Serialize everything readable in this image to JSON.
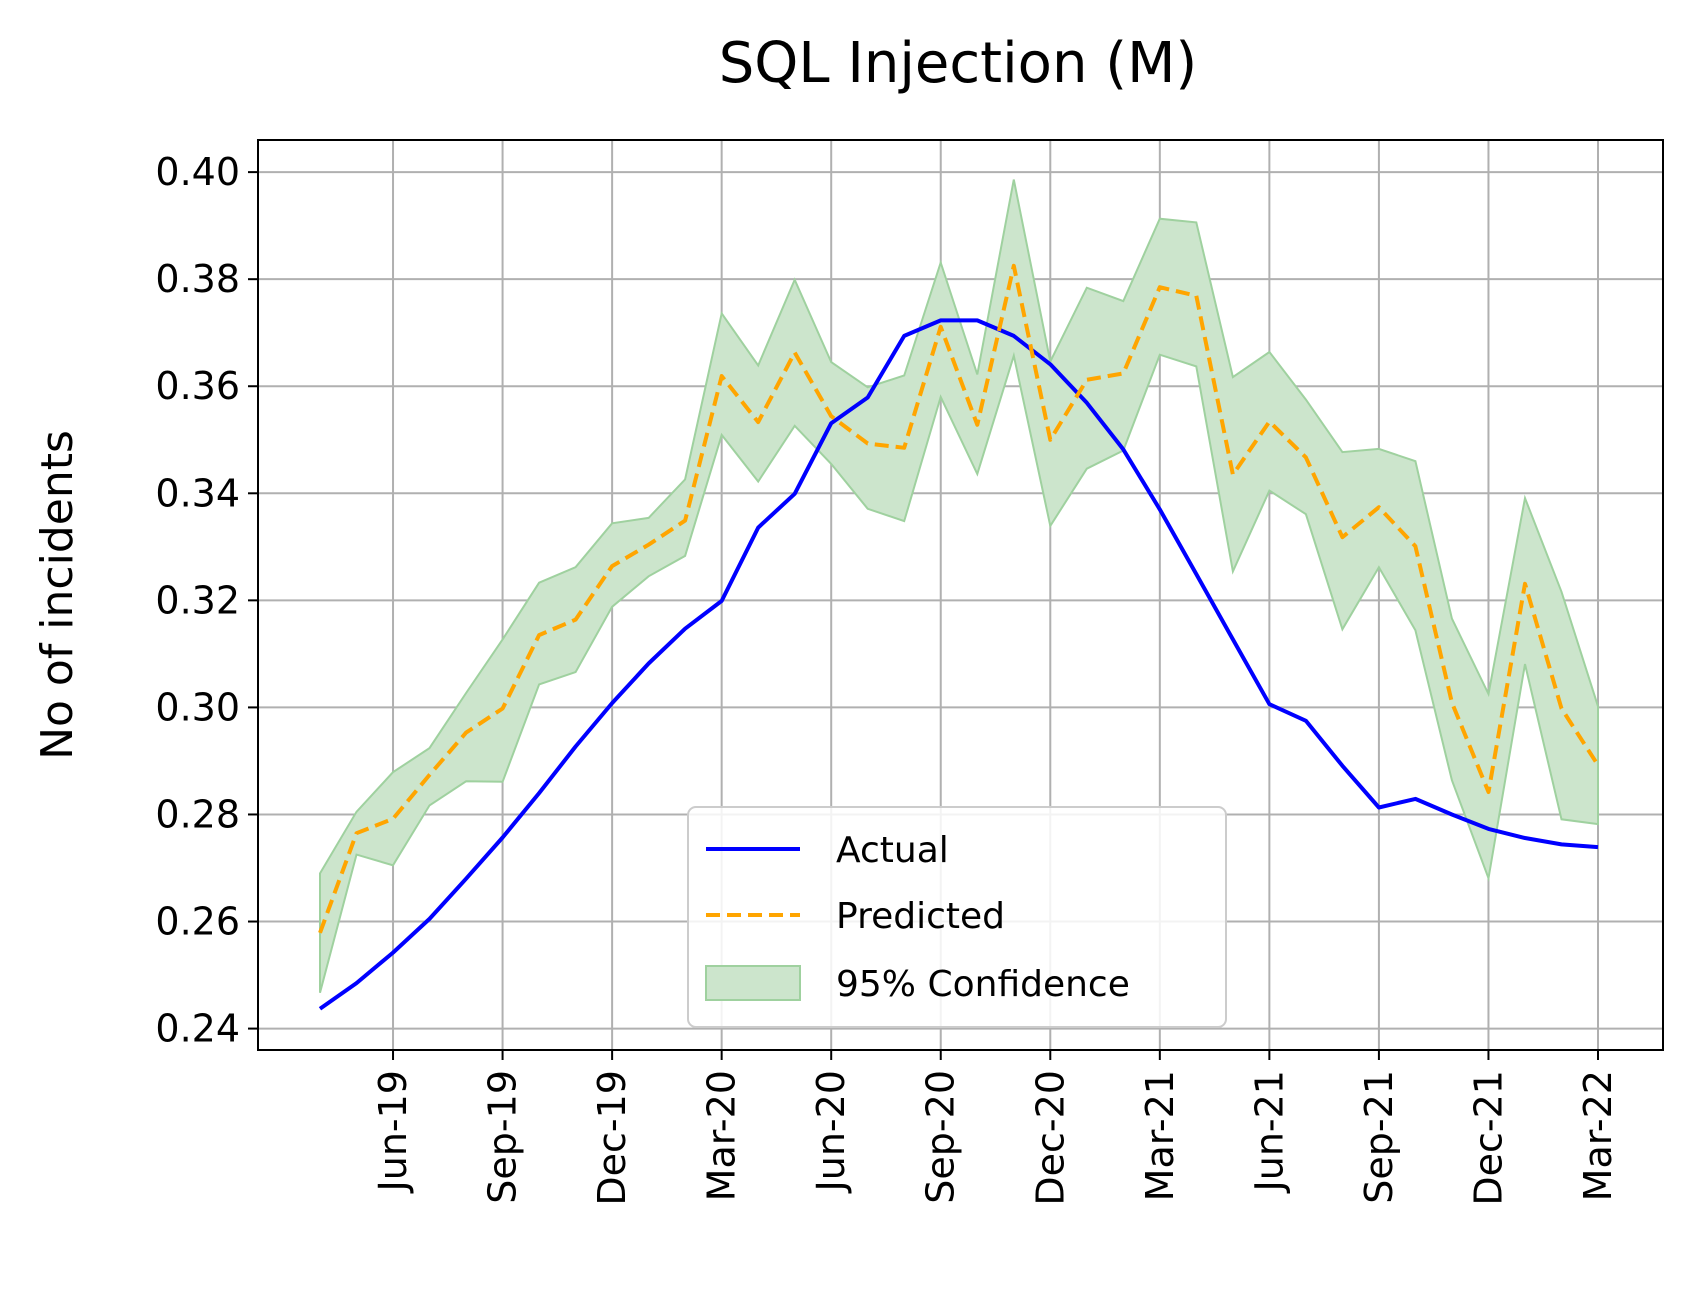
{
  "chart_data": {
    "type": "line",
    "title": "SQL Injection (M)",
    "xlabel": "",
    "ylabel": "No of incidents",
    "x_ticks": [
      "Jun-19",
      "Sep-19",
      "Dec-19",
      "Mar-20",
      "Jun-20",
      "Sep-20",
      "Dec-20",
      "Mar-21",
      "Jun-21",
      "Sep-21",
      "Dec-21",
      "Mar-22"
    ],
    "x": [
      "Apr-19",
      "May-19",
      "Jun-19",
      "Jul-19",
      "Aug-19",
      "Sep-19",
      "Oct-19",
      "Nov-19",
      "Dec-19",
      "Jan-20",
      "Feb-20",
      "Mar-20",
      "Apr-20",
      "May-20",
      "Jun-20",
      "Jul-20",
      "Aug-20",
      "Sep-20",
      "Oct-20",
      "Nov-20",
      "Dec-20",
      "Jan-21",
      "Feb-21",
      "Mar-21",
      "Apr-21",
      "May-21",
      "Jun-21",
      "Jul-21",
      "Aug-21",
      "Sep-21",
      "Oct-21",
      "Nov-21",
      "Dec-21",
      "Jan-22",
      "Feb-22",
      "Mar-22"
    ],
    "ylim": [
      0.236,
      0.406
    ],
    "y_ticks": [
      "0.24",
      "0.26",
      "0.28",
      "0.30",
      "0.32",
      "0.34",
      "0.36",
      "0.38",
      "0.40"
    ],
    "grid": true,
    "legend_placement": "lower-center",
    "series": [
      {
        "name": "Actual",
        "style": "solid",
        "color": "#0000ff",
        "values": [
          0.2437,
          0.2485,
          0.2542,
          0.2605,
          0.268,
          0.2757,
          0.284,
          0.2927,
          0.3008,
          0.3082,
          0.3147,
          0.3199,
          0.3336,
          0.3399,
          0.3531,
          0.3579,
          0.3694,
          0.3723,
          0.3723,
          0.3694,
          0.3641,
          0.3569,
          0.3482,
          0.337,
          0.3249,
          0.3127,
          0.3006,
          0.2975,
          0.2891,
          0.2813,
          0.2829,
          0.28,
          0.2773,
          0.2756,
          0.2744,
          0.2739
        ]
      },
      {
        "name": "Predicted",
        "style": "dashed",
        "color": "#ffa500",
        "values": [
          0.2579,
          0.2765,
          0.2792,
          0.2874,
          0.2953,
          0.2998,
          0.3135,
          0.3164,
          0.3264,
          0.3304,
          0.3349,
          0.3619,
          0.3533,
          0.3663,
          0.3544,
          0.3493,
          0.3485,
          0.3711,
          0.3528,
          0.3825,
          0.35,
          0.3612,
          0.3624,
          0.3785,
          0.3769,
          0.3435,
          0.3534,
          0.3467,
          0.3318,
          0.3374,
          0.3301,
          0.3009,
          0.2842,
          0.3231,
          0.2998,
          0.2892
        ]
      },
      {
        "name": "95% Confidence",
        "type": "band",
        "color": "#cce5cc",
        "lower": [
          0.2467,
          0.2725,
          0.2705,
          0.2817,
          0.2862,
          0.2861,
          0.3043,
          0.3066,
          0.3188,
          0.3245,
          0.3283,
          0.3509,
          0.3422,
          0.3526,
          0.3455,
          0.3371,
          0.3348,
          0.358,
          0.3436,
          0.3657,
          0.3339,
          0.3446,
          0.348,
          0.3659,
          0.3637,
          0.3254,
          0.3405,
          0.3361,
          0.3146,
          0.3262,
          0.3144,
          0.2864,
          0.2681,
          0.3081,
          0.2791,
          0.2782
        ],
        "upper": [
          0.269,
          0.2805,
          0.2879,
          0.2924,
          0.3027,
          0.3127,
          0.3233,
          0.3262,
          0.3344,
          0.3354,
          0.3426,
          0.3736,
          0.3639,
          0.3799,
          0.3645,
          0.3598,
          0.362,
          0.3831,
          0.3622,
          0.3986,
          0.3646,
          0.3784,
          0.3759,
          0.3913,
          0.3906,
          0.3617,
          0.3664,
          0.3575,
          0.3477,
          0.3483,
          0.346,
          0.3166,
          0.3025,
          0.3391,
          0.3216,
          0.3002
        ]
      }
    ]
  }
}
